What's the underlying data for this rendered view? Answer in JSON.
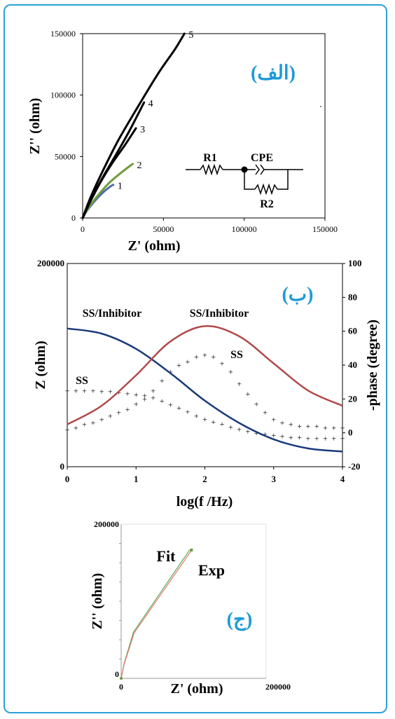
{
  "figure": {
    "panels": [
      {
        "label": "(الف)"
      },
      {
        "label": "(ب)"
      },
      {
        "label": "(ج)"
      }
    ]
  },
  "colors": {
    "frame": "#2aa2d8",
    "panel_label": "#1e9ad6",
    "curve_black": "#000000",
    "curve_green": "#6e9b3c",
    "curve_blue": "#4a6ea8",
    "navy": "#1a3a7a",
    "darkred": "#b04a4a",
    "fit_green": "#5aa85a",
    "exp_red": "#e07a6a"
  },
  "chart_data": [
    {
      "type": "line",
      "panel": "(الف)",
      "xlabel": "Z' (ohm)",
      "ylabel": "Z'' (ohm)",
      "xlim": [
        0,
        150000
      ],
      "ylim": [
        0,
        150000
      ],
      "xticks": [
        "0",
        "50000",
        "100000",
        "150000"
      ],
      "yticks": [
        "0",
        "50000",
        "100000",
        "150000"
      ],
      "grid": false,
      "series": [
        {
          "name": "1",
          "color": "#4a6ea8",
          "points": [
            [
              0,
              0
            ],
            [
              3000,
              6500
            ],
            [
              7000,
              13000
            ],
            [
              12000,
              20000
            ],
            [
              17000,
              25500
            ],
            [
              19000,
              27000
            ]
          ]
        },
        {
          "name": "2",
          "color": "#6e9b3c",
          "points": [
            [
              0,
              0
            ],
            [
              3000,
              7000
            ],
            [
              8000,
              16000
            ],
            [
              16000,
              28000
            ],
            [
              24000,
              37000
            ],
            [
              31000,
              44000
            ]
          ]
        },
        {
          "name": "3",
          "color": "#000000",
          "points": [
            [
              0,
              0
            ],
            [
              5000,
              14000
            ],
            [
              11000,
              29000
            ],
            [
              18000,
              44000
            ],
            [
              26000,
              59000
            ],
            [
              33000,
              73000
            ]
          ]
        },
        {
          "name": "4",
          "color": "#000000",
          "points": [
            [
              0,
              0
            ],
            [
              5000,
              15000
            ],
            [
              12000,
              32000
            ],
            [
              20000,
              50000
            ],
            [
              29000,
              71000
            ],
            [
              38000,
              94000
            ]
          ]
        },
        {
          "name": "5",
          "color": "#000000",
          "points": [
            [
              0,
              0
            ],
            [
              5000,
              17000
            ],
            [
              12000,
              37000
            ],
            [
              22000,
              63000
            ],
            [
              34000,
              90000
            ],
            [
              47000,
              118000
            ],
            [
              57000,
              137000
            ],
            [
              63000,
              150000
            ]
          ]
        }
      ],
      "inset": {
        "labels": [
          "R1",
          "CPE",
          "R2"
        ]
      }
    },
    {
      "type": "line",
      "panel": "(ب)",
      "xlabel": "log(f /Hz)",
      "ylabel": "Z (ohm)",
      "ylabel_right": "-phase (degree)",
      "xlim": [
        0,
        4
      ],
      "ylim": [
        0,
        200000
      ],
      "ylim_right": [
        -20,
        100
      ],
      "xticks": [
        "0",
        "1",
        "2",
        "3",
        "4"
      ],
      "yticks_left": [
        "0",
        "200000"
      ],
      "yticks_right": [
        "-20",
        "0",
        "20",
        "40",
        "60",
        "80",
        "100"
      ],
      "annotations": [
        "SS/Inhibitor",
        "SS/Inhibitor",
        "SS",
        "SS"
      ],
      "series": [
        {
          "name": "SS/Inhibitor",
          "axis": "left",
          "style": "line",
          "color": "#1a3a7a",
          "x": [
            0,
            0.5,
            1,
            1.5,
            2,
            2.5,
            3,
            3.5,
            4
          ],
          "y": [
            136000,
            131000,
            116000,
            92000,
            65000,
            43000,
            27000,
            18000,
            15000
          ]
        },
        {
          "name": "SS/Inhibitor",
          "axis": "right",
          "style": "line",
          "color": "#b04a4a",
          "x": [
            0,
            0.5,
            1,
            1.5,
            2,
            2.5,
            3,
            3.5,
            4
          ],
          "y": [
            5,
            16,
            34,
            54,
            63,
            57,
            41,
            25,
            16
          ]
        },
        {
          "name": "SS",
          "axis": "left",
          "style": "markers",
          "x": [
            0,
            0.125,
            0.25,
            0.375,
            0.5,
            0.625,
            0.75,
            0.875,
            1,
            1.125,
            1.25,
            1.375,
            1.5,
            1.625,
            1.75,
            1.875,
            2,
            2.125,
            2.25,
            2.375,
            2.5,
            2.625,
            2.75,
            2.875,
            3,
            3.125,
            3.25,
            3.375,
            3.5,
            3.625,
            3.75,
            3.875,
            4
          ],
          "y": [
            75000,
            75000,
            75000,
            75000,
            74000,
            74000,
            73000,
            72000,
            71000,
            70000,
            68000,
            65000,
            61000,
            58000,
            54000,
            50000,
            47000,
            44000,
            42000,
            39000,
            37000,
            35000,
            33000,
            32000,
            31000,
            30000,
            29000,
            29000,
            28000,
            28000,
            28000,
            28000,
            28000
          ]
        },
        {
          "name": "SS",
          "axis": "right",
          "style": "markers",
          "x": [
            0,
            0.125,
            0.25,
            0.375,
            0.5,
            0.625,
            0.75,
            0.875,
            1,
            1.125,
            1.25,
            1.375,
            1.5,
            1.625,
            1.75,
            1.875,
            2,
            2.125,
            2.25,
            2.375,
            2.5,
            2.625,
            2.75,
            2.875,
            3,
            3.125,
            3.25,
            3.375,
            3.5,
            3.625,
            3.75,
            3.875,
            4
          ],
          "y": [
            2,
            3,
            5,
            6,
            8,
            10,
            12,
            14,
            17,
            20,
            25,
            31,
            36,
            40,
            42,
            45,
            46,
            45,
            41,
            36,
            29,
            23,
            17,
            12,
            8,
            6,
            5,
            4,
            4,
            4,
            3,
            3,
            3
          ]
        }
      ]
    },
    {
      "type": "line",
      "panel": "(ج)",
      "xlabel": "Z' (ohm)",
      "ylabel": "Z'' (ohm)",
      "xlim": [
        0,
        200000
      ],
      "ylim": [
        0,
        200000
      ],
      "xticks": [
        "0",
        "200000"
      ],
      "yticks": [
        "0",
        "200000"
      ],
      "annotations": [
        "Fit",
        "Exp"
      ],
      "series": [
        {
          "name": "Fit",
          "color": "#5aa85a",
          "points": [
            [
              0,
              0
            ],
            [
              4000,
              19000
            ],
            [
              17000,
              60000
            ],
            [
              94000,
              166000
            ],
            [
              97000,
              166500
            ]
          ]
        },
        {
          "name": "Exp",
          "color": "#e07a6a",
          "points": [
            [
              0,
              0
            ],
            [
              4000,
              18000
            ],
            [
              18000,
              59000
            ],
            [
              97000,
              166000
            ]
          ]
        }
      ]
    }
  ]
}
